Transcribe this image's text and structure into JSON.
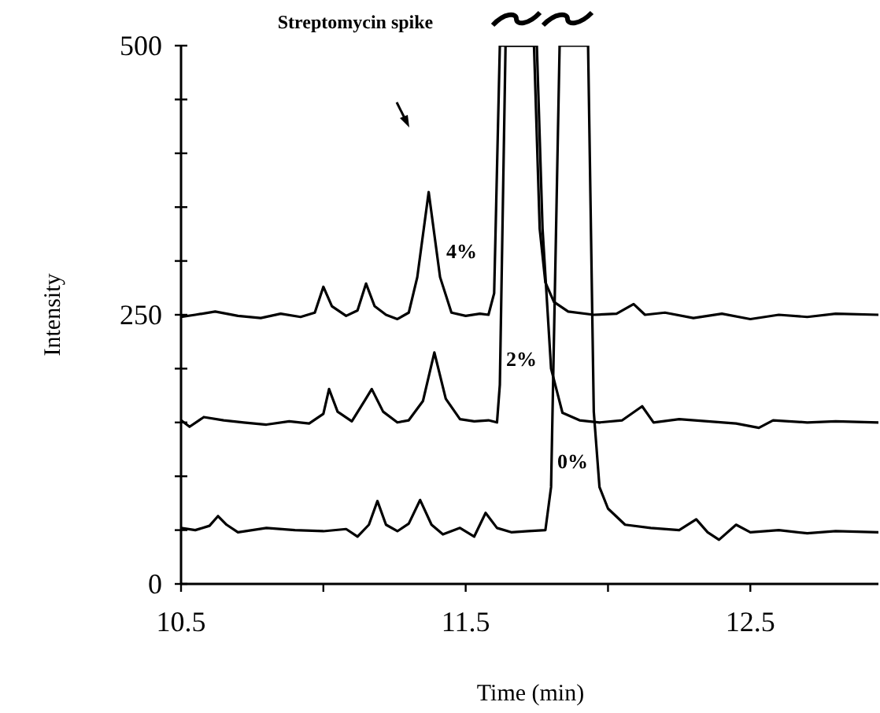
{
  "chart_data": {
    "type": "line",
    "xlabel": "Time (min)",
    "ylabel": "Intensity",
    "xlim": [
      10.5,
      12.95
    ],
    "ylim": [
      0,
      500
    ],
    "xticks": [
      10.5,
      {
        "value": 11,
        "label": null
      },
      11.5,
      {
        "value": 12,
        "label": null
      },
      12.5
    ],
    "yticks": [
      0,
      {
        "value": 50,
        "label": null
      },
      {
        "value": 100,
        "label": null
      },
      {
        "value": 150,
        "label": null
      },
      {
        "value": 200,
        "label": null
      },
      250,
      {
        "value": 300,
        "label": null
      },
      {
        "value": 350,
        "label": null
      },
      {
        "value": 400,
        "label": null
      },
      {
        "value": 450,
        "label": null
      },
      500
    ],
    "marker": "none",
    "line_style": "solid",
    "grid": false,
    "annotations": [
      "Streptomycin spike"
    ],
    "series": [
      {
        "name": "4%",
        "color": "#000000",
        "x": [
          10.5,
          10.55,
          10.62,
          10.7,
          10.78,
          10.85,
          10.92,
          10.97,
          11.0,
          11.03,
          11.08,
          11.12,
          11.15,
          11.18,
          11.22,
          11.26,
          11.3,
          11.33,
          11.37,
          11.41,
          11.45,
          11.5,
          11.55,
          11.58,
          11.6,
          11.62,
          11.74,
          11.76,
          11.78,
          11.81,
          11.86,
          11.95,
          12.03,
          12.09,
          12.13,
          12.2,
          12.3,
          12.4,
          12.5,
          12.6,
          12.7,
          12.8,
          12.95
        ],
        "values": [
          248,
          250,
          253,
          249,
          247,
          251,
          248,
          252,
          276,
          258,
          249,
          254,
          279,
          258,
          250,
          246,
          252,
          285,
          364,
          285,
          252,
          249,
          251,
          250,
          270,
          500,
          500,
          330,
          280,
          262,
          253,
          250,
          251,
          260,
          250,
          252,
          247,
          251,
          246,
          250,
          248,
          251,
          250
        ]
      },
      {
        "name": "2%",
        "color": "#000000",
        "x": [
          10.5,
          10.53,
          10.58,
          10.65,
          10.72,
          10.8,
          10.88,
          10.95,
          11.0,
          11.02,
          11.05,
          11.1,
          11.14,
          11.17,
          11.21,
          11.26,
          11.3,
          11.35,
          11.39,
          11.43,
          11.48,
          11.53,
          11.58,
          11.61,
          11.62,
          11.64,
          11.75,
          11.77,
          11.8,
          11.84,
          11.9,
          11.97,
          12.05,
          12.12,
          12.16,
          12.25,
          12.35,
          12.45,
          12.53,
          12.58,
          12.7,
          12.8,
          12.95
        ],
        "values": [
          152,
          146,
          155,
          152,
          150,
          148,
          151,
          149,
          158,
          181,
          160,
          151,
          168,
          181,
          160,
          150,
          152,
          170,
          215,
          172,
          153,
          151,
          152,
          150,
          185,
          500,
          500,
          330,
          200,
          159,
          152,
          150,
          152,
          165,
          150,
          153,
          151,
          149,
          145,
          152,
          150,
          151,
          150
        ]
      },
      {
        "name": "0%",
        "color": "#000000",
        "x": [
          10.5,
          10.55,
          10.6,
          10.63,
          10.66,
          10.7,
          10.8,
          10.9,
          11.0,
          11.08,
          11.12,
          11.16,
          11.19,
          11.22,
          11.26,
          11.3,
          11.34,
          11.38,
          11.42,
          11.48,
          11.53,
          11.57,
          11.61,
          11.66,
          11.72,
          11.78,
          11.8,
          11.83,
          11.93,
          11.95,
          11.97,
          12.0,
          12.06,
          12.15,
          12.25,
          12.31,
          12.35,
          12.39,
          12.45,
          12.5,
          12.6,
          12.7,
          12.8,
          12.95
        ],
        "values": [
          52,
          50,
          54,
          63,
          55,
          48,
          52,
          50,
          49,
          51,
          44,
          55,
          77,
          55,
          49,
          56,
          78,
          55,
          46,
          52,
          44,
          66,
          52,
          48,
          49,
          50,
          90,
          500,
          500,
          160,
          90,
          70,
          55,
          52,
          50,
          60,
          48,
          41,
          55,
          48,
          50,
          47,
          49,
          48
        ]
      }
    ]
  }
}
